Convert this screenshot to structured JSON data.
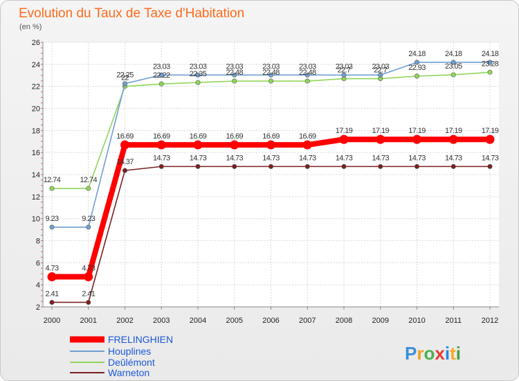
{
  "chart_data": {
    "type": "line",
    "title": "Evolution du Taux de Taxe d'Habitation",
    "ylabel": "(en %)",
    "xlabel": "",
    "ylim": [
      2,
      26
    ],
    "yticks": [
      2,
      4,
      6,
      8,
      10,
      12,
      14,
      16,
      18,
      20,
      22,
      24,
      26
    ],
    "grid": true,
    "legend_position": "bottom-left",
    "categories": [
      "2000",
      "2001",
      "2002",
      "2003",
      "2004",
      "2005",
      "2006",
      "2007",
      "2008",
      "2009",
      "2010",
      "2011",
      "2012"
    ],
    "series": [
      {
        "name": "FRELINGHIEN",
        "color": "#ff0000",
        "emphasis": true,
        "values": [
          4.73,
          4.73,
          16.69,
          16.69,
          16.69,
          16.69,
          16.69,
          16.69,
          17.19,
          17.19,
          17.19,
          17.19,
          17.19
        ],
        "labels": [
          "4.73",
          "4.73",
          "16.69",
          "16.69",
          "16.69",
          "16.69",
          "16.69",
          "16.69",
          "17.19",
          "17.19",
          "17.19",
          "17.19",
          "17.19"
        ]
      },
      {
        "name": "Houplines",
        "color": "#6f9fd0",
        "values": [
          9.23,
          9.23,
          22.25,
          23.03,
          23.03,
          23.03,
          23.03,
          23.03,
          23.03,
          23.03,
          24.18,
          24.18,
          24.18
        ],
        "labels": [
          "9.23",
          "9.23",
          "22.25",
          "23.03",
          "23.03",
          "23.03",
          "23.03",
          "23.03",
          "23.03",
          "23.03",
          "24.18",
          "24.18",
          "24.18"
        ]
      },
      {
        "name": "Deûlémont",
        "color": "#8fd65a",
        "values": [
          12.74,
          12.74,
          22,
          22.22,
          22.35,
          22.48,
          22.48,
          22.48,
          22.7,
          22.7,
          22.93,
          23.05,
          23.28
        ],
        "labels": [
          "12.74",
          "12.74",
          "22",
          "22.22",
          "22.35",
          "22.48",
          "22.48",
          "22.48",
          "22.7",
          "22.7",
          "22.93",
          "23.05",
          "23.28"
        ]
      },
      {
        "name": "Warneton",
        "color": "#7a2020",
        "values": [
          2.41,
          2.41,
          14.37,
          14.73,
          14.73,
          14.73,
          14.73,
          14.73,
          14.73,
          14.73,
          14.73,
          14.73,
          14.73
        ],
        "labels": [
          "2.41",
          "2.41",
          "14.37",
          "14.73",
          "14.73",
          "14.73",
          "14.73",
          "14.73",
          "14.73",
          "14.73",
          "14.73",
          "14.73",
          "14.73"
        ]
      }
    ]
  },
  "logo": {
    "text": "Proxiti",
    "colors": [
      "#3a8fd8",
      "#f0a020",
      "#4caf50",
      "#e53935",
      "#1e88e5",
      "#f9a825",
      "#43a047"
    ]
  }
}
